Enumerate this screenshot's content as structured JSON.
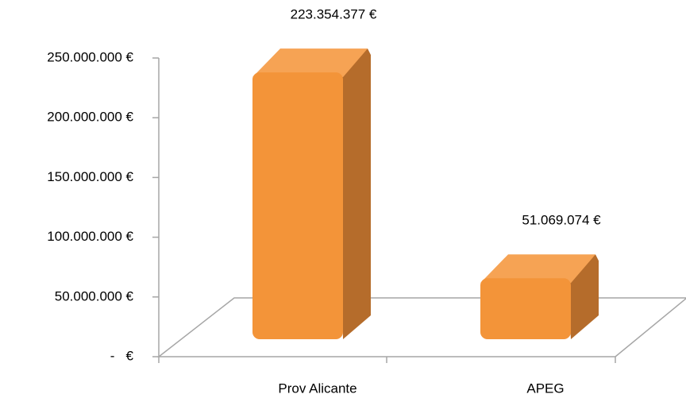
{
  "chart_data": {
    "type": "bar3d",
    "categories": [
      "Prov Alicante",
      "APEG"
    ],
    "values": [
      223354377,
      51069074
    ],
    "value_labels": [
      "223.354.377 €",
      "51.069.074 €"
    ],
    "color": "#f39439",
    "ylim": [
      0,
      250000000
    ],
    "yticks": [
      {
        "value": 0,
        "label": "-   €"
      },
      {
        "value": 50000000,
        "label": "50.000.000 €"
      },
      {
        "value": 100000000,
        "label": "100.000.000 €"
      },
      {
        "value": 150000000,
        "label": "150.000.000 €"
      },
      {
        "value": 200000000,
        "label": "200.000.000 €"
      },
      {
        "value": 250000000,
        "label": "250.000.000 €"
      }
    ],
    "grid": false
  }
}
